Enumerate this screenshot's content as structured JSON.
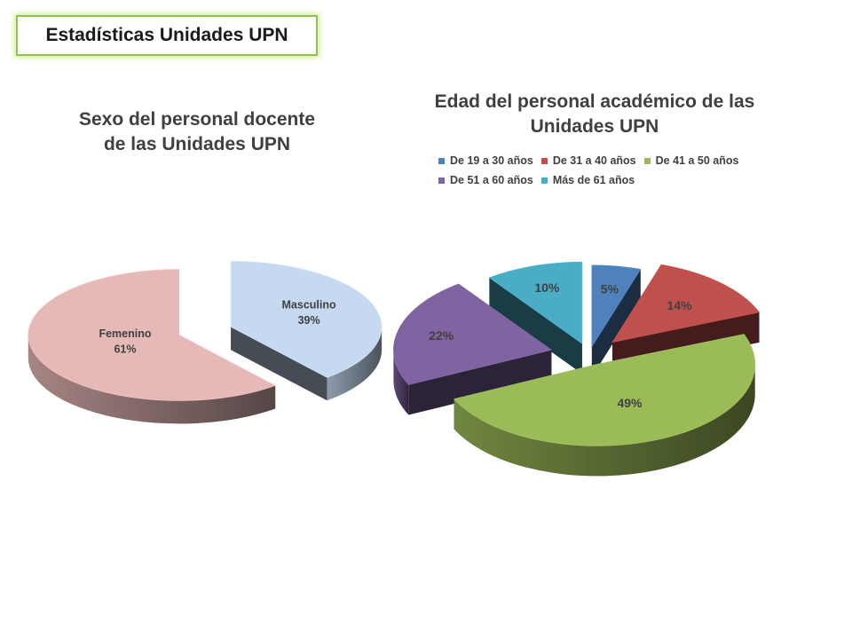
{
  "slide": {
    "title": "Estadísticas Unidades UPN"
  },
  "chart_data": [
    {
      "type": "pie",
      "title_lines": [
        "Sexo del personal docente",
        "de las Unidades UPN"
      ],
      "slices": [
        {
          "name": "Masculino",
          "value": 39,
          "value_label": "39%",
          "color": "#c6d9f1"
        },
        {
          "name": "Femenino",
          "value": 61,
          "value_label": "61%",
          "color": "#e6b9b8"
        }
      ],
      "exploded": true,
      "three_d": true
    },
    {
      "type": "pie",
      "title_lines": [
        "Edad del personal académico de las",
        "Unidades UPN"
      ],
      "slices": [
        {
          "name": "De 19 a 30 años",
          "value": 5,
          "value_label": "5%",
          "color": "#4f81bd"
        },
        {
          "name": "De 31 a 40 años",
          "value": 14,
          "value_label": "14%",
          "color": "#c0504d"
        },
        {
          "name": "De 41 a 50 años",
          "value": 49,
          "value_label": "49%",
          "color": "#9bbb59"
        },
        {
          "name": "De 51 a 60 años",
          "value": 22,
          "value_label": "22%",
          "color": "#8064a2"
        },
        {
          "name": "Más de 61 años",
          "value": 10,
          "value_label": "10%",
          "color": "#4bacc6"
        }
      ],
      "legend_position": "top",
      "exploded": true,
      "three_d": true
    }
  ]
}
